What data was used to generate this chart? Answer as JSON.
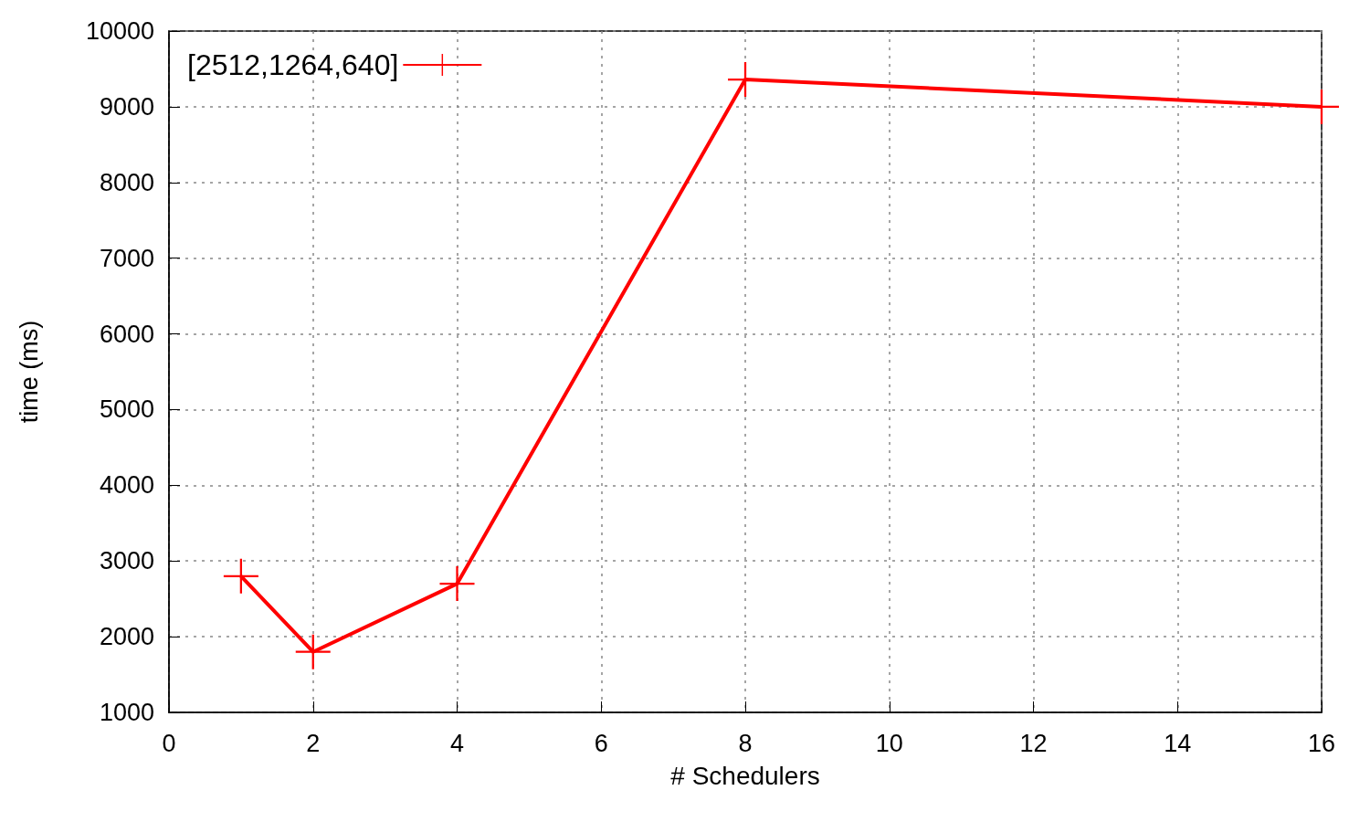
{
  "chart_data": {
    "type": "line",
    "xlabel": "# Schedulers",
    "ylabel": "time (ms)",
    "x": [
      1,
      2,
      4,
      8,
      16
    ],
    "series": [
      {
        "name": "[2512,1264,640]",
        "color": "#ff0000",
        "values": [
          2800,
          1800,
          2700,
          9360,
          9000
        ]
      }
    ],
    "xlim": [
      0,
      16
    ],
    "xticks": [
      0,
      2,
      4,
      6,
      8,
      10,
      12,
      14,
      16
    ],
    "ylim": [
      1000,
      10000
    ],
    "yticks": [
      1000,
      2000,
      3000,
      4000,
      5000,
      6000,
      7000,
      8000,
      9000,
      10000
    ],
    "grid": true,
    "legend": "top left",
    "marker": "cross",
    "line_style": "solid"
  }
}
